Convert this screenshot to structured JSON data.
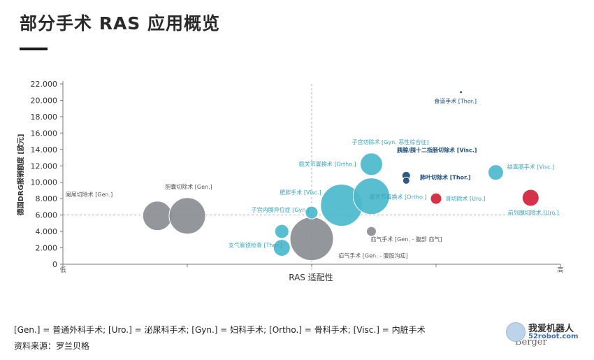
{
  "title": "部分手术 RAS 应用概览",
  "footnote": "[Gen.] = 普通外科手术; [Uro.] = 泌尿科手术; [Gyn.] = 妇科手术; [Ortho.] = 骨科手术; [Visc.] = 内脏手术",
  "source": "资料来源：罗兰贝格",
  "brand": "Berger",
  "watermark": {
    "line1": "我爱机器人",
    "line2": "52robot.com"
  },
  "colors": {
    "gray": "#8a8d91",
    "teal": "#4bb8cc",
    "navy": "#1e4e79",
    "red": "#d0213a",
    "axis": "#777777"
  },
  "chart_data": {
    "type": "scatter",
    "xlabel": "RAS 适配性",
    "ylabel": "德国DRG报销额度 [欧元]",
    "x_tick_low": "低",
    "x_tick_high": "高",
    "xlim": [
      0,
      10
    ],
    "ylim": [
      0,
      22000
    ],
    "y_ticks": [
      0,
      2000,
      4000,
      6000,
      8000,
      10000,
      12000,
      14000,
      16000,
      18000,
      20000,
      22000
    ],
    "y_tick_labels": [
      "0",
      "2.000",
      "4.000",
      "6.000",
      "8.000",
      "10.000",
      "12.000",
      "14.000",
      "16.000",
      "18.000",
      "20.000",
      "22.000"
    ],
    "y_reference": 6000,
    "x_reference": 5,
    "points": [
      {
        "label": "阑尾切除术 [Gen.]",
        "x": 1.9,
        "y": 5900,
        "r": 21,
        "color": "gray"
      },
      {
        "label": "胆囊切除术 [Gen.]",
        "x": 2.5,
        "y": 5900,
        "r": 26,
        "color": "gray"
      },
      {
        "label": "子宫内膜异位症 [Gyn.]",
        "x": 4.4,
        "y": 4000,
        "r": 10,
        "color": "teal"
      },
      {
        "label": "支气管镜检查 [Thor.]",
        "x": 4.4,
        "y": 2000,
        "r": 12,
        "color": "teal"
      },
      {
        "label": "疝气手术 [Gen. - 腹股沟疝]",
        "x": 5.0,
        "y": 3100,
        "r": 31,
        "color": "gray"
      },
      {
        "label": "肥胖手术 [Visc.]",
        "x": 5.0,
        "y": 6300,
        "r": 9,
        "color": "teal"
      },
      {
        "label": "髋关节置换术 [Ortho.]",
        "x": 5.6,
        "y": 7200,
        "r": 30,
        "color": "teal"
      },
      {
        "label": "膝关节置换术 [Ortho.]",
        "x": 6.2,
        "y": 8300,
        "r": 26,
        "color": "teal"
      },
      {
        "label": "子宫切除术 [Gyn. 恶性综合征]",
        "x": 6.2,
        "y": 12200,
        "r": 16,
        "color": "teal"
      },
      {
        "label": "疝气手术 [Gen. - 腹部 疝气]",
        "x": 6.2,
        "y": 4000,
        "r": 7,
        "color": "gray"
      },
      {
        "label": "胰腺/胰十二指肠切除术 [Visc.]",
        "x": 6.9,
        "y": 10800,
        "r": 6,
        "color": "navy"
      },
      {
        "label": "肺叶切除术 [Thor.]",
        "x": 6.9,
        "y": 10200,
        "r": 5,
        "color": "navy"
      },
      {
        "label": "肾切除术 [Uro.]",
        "x": 7.5,
        "y": 8000,
        "r": 8,
        "color": "red"
      },
      {
        "label": "食道手术 [Thor.]",
        "x": 8.0,
        "y": 21000,
        "r": 2,
        "color": "navy"
      },
      {
        "label": "结直肠手术 [Visc.]",
        "x": 8.7,
        "y": 11200,
        "r": 11,
        "color": "teal"
      },
      {
        "label": "前列腺切除术 [Uro.]",
        "x": 9.4,
        "y": 8100,
        "r": 12,
        "color": "red"
      }
    ]
  }
}
